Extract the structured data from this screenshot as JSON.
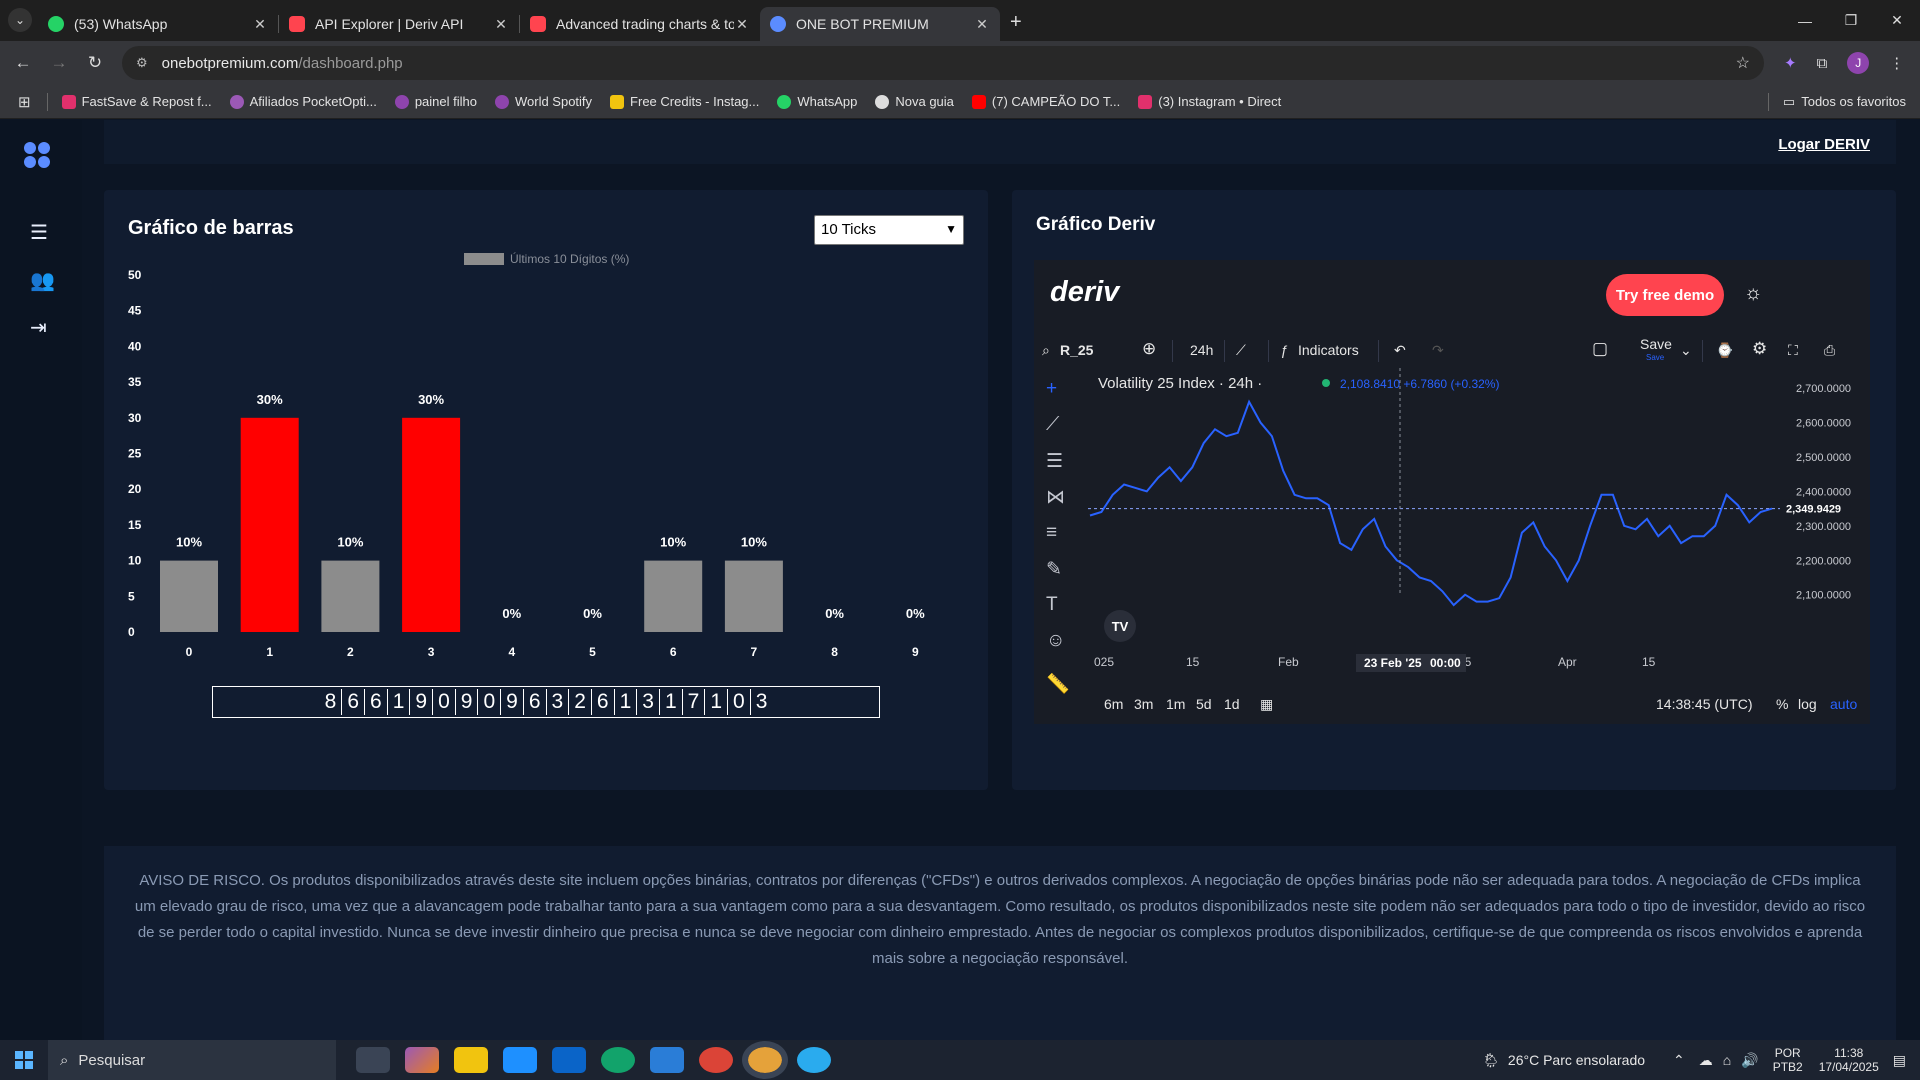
{
  "browser": {
    "tabs": [
      {
        "title": "(53) WhatsApp",
        "icon": "whatsapp-icon",
        "color": "#25d366"
      },
      {
        "title": "API Explorer | Deriv API",
        "icon": "deriv-icon",
        "color": "#ff444f"
      },
      {
        "title": "Advanced trading charts & tools",
        "icon": "deriv-icon",
        "color": "#ff444f"
      },
      {
        "title": "ONE BOT PREMIUM",
        "icon": "onebot-icon",
        "color": "#5b8cff"
      }
    ],
    "url_host": "onebotpremium.com",
    "url_path": "/dashboard.php",
    "avatar_letter": "J",
    "bookmarks": [
      {
        "label": "FastSave & Repost f...",
        "color": "#e1306c"
      },
      {
        "label": "Afiliados PocketOpti...",
        "color": "#9b59b6"
      },
      {
        "label": "painel filho",
        "color": "#8e44ad"
      },
      {
        "label": "World Spotify",
        "color": "#8e44ad"
      },
      {
        "label": "Free Credits - Instag...",
        "color": "#f1c40f"
      },
      {
        "label": "WhatsApp",
        "color": "#25d366"
      },
      {
        "label": "Nova guia",
        "color": "#dddddd"
      },
      {
        "label": "(7) CAMPEÃO DO T...",
        "color": "#ff0000"
      },
      {
        "label": "(3) Instagram • Direct",
        "color": "#e1306c"
      }
    ],
    "bookmarks_all": "Todos os favoritos"
  },
  "header": {
    "login_link": "Logar DERIV"
  },
  "bar_panel": {
    "title": "Gráfico de barras",
    "select_value": "10 Ticks",
    "digits": [
      "8",
      "6",
      "6",
      "1",
      "9",
      "0",
      "9",
      "0",
      "9",
      "6",
      "3",
      "2",
      "6",
      "1",
      "3",
      "1",
      "7",
      "1",
      "0",
      "3"
    ]
  },
  "chart_data": {
    "type": "bar",
    "title": "",
    "legend": [
      "Últimos 10 Dígitos (%)"
    ],
    "categories": [
      "0",
      "1",
      "2",
      "3",
      "4",
      "5",
      "6",
      "7",
      "8",
      "9"
    ],
    "values": [
      10,
      30,
      10,
      30,
      0,
      0,
      10,
      10,
      0,
      0
    ],
    "value_labels": [
      "10%",
      "30%",
      "10%",
      "30%",
      "0%",
      "0%",
      "10%",
      "10%",
      "0%",
      "0%"
    ],
    "colors": [
      "#8c8c8c",
      "#ff0000",
      "#8c8c8c",
      "#ff0000",
      "#8c8c8c",
      "#8c8c8c",
      "#8c8c8c",
      "#8c8c8c",
      "#8c8c8c",
      "#8c8c8c"
    ],
    "yticks": [
      "0",
      "5",
      "10",
      "15",
      "20",
      "25",
      "30",
      "35",
      "40",
      "45",
      "50"
    ],
    "ylim": [
      0,
      50
    ]
  },
  "deriv_panel": {
    "title": "Gráfico Deriv",
    "logo": "deriv",
    "demo_button": "Try free demo",
    "symbol": "R_25",
    "interval": "24h",
    "indicators": "Indicators",
    "save": "Save",
    "save_sub": "Save",
    "index_name": "Volatility 25 Index · 24h ·",
    "price_info": "2,108.8410  +6.7860 (+0.32%)",
    "current_price": "2,349.9429",
    "price_axis": [
      "2,700.0000",
      "2,600.0000",
      "2,500.0000",
      "2,400.0000",
      "2,300.0000",
      "2,200.0000",
      "2,100.0000"
    ],
    "time_axis": [
      "025",
      "15",
      "Feb",
      "15",
      "Apr",
      "15"
    ],
    "crosshair_label": "23 Feb '25",
    "crosshair_time": "00:00",
    "ranges": [
      "6m",
      "3m",
      "1m",
      "5d",
      "1d"
    ],
    "clock": "14:38:45 (UTC)",
    "scale_options": [
      "%",
      "log",
      "auto"
    ],
    "series_y": [
      2330,
      2340,
      2390,
      2420,
      2410,
      2400,
      2440,
      2470,
      2430,
      2470,
      2540,
      2580,
      2560,
      2570,
      2660,
      2600,
      2560,
      2460,
      2390,
      2380,
      2380,
      2360,
      2250,
      2230,
      2290,
      2320,
      2240,
      2200,
      2180,
      2150,
      2140,
      2110,
      2070,
      2100,
      2080,
      2080,
      2090,
      2150,
      2280,
      2310,
      2240,
      2200,
      2140,
      2200,
      2300,
      2390,
      2390,
      2300,
      2290,
      2320,
      2270,
      2300,
      2250,
      2270,
      2270,
      2300,
      2390,
      2360,
      2310,
      2340,
      2350
    ]
  },
  "risk_notice": "AVISO DE RISCO. Os produtos disponibilizados através deste site incluem opções binárias, contratos por diferenças (\"CFDs\") e outros derivados complexos. A negociação de opções binárias pode não ser adequada para todos. A negociação de CFDs implica um elevado grau de risco, uma vez que a alavancagem pode trabalhar tanto para a sua vantagem como para a sua desvantagem. Como resultado, os produtos disponibilizados neste site podem não ser adequados para todo o tipo de investidor, devido ao risco de se perder todo o capital investido. Nunca se deve investir dinheiro que precisa e nunca se deve negociar com dinheiro emprestado. Antes de negociar os complexos produtos disponibilizados, certifique-se de que compreenda os riscos envolvidos e aprenda mais sobre a negociação responsável.",
  "taskbar": {
    "search": "Pesquisar",
    "weather": "26°C  Parc ensolarado",
    "lang1": "POR",
    "lang2": "PTB2",
    "time": "11:38",
    "date": "17/04/2025"
  }
}
